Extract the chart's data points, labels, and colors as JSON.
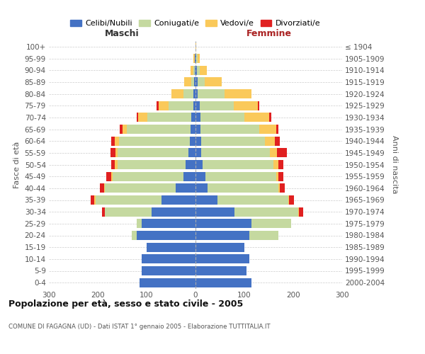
{
  "age_groups": [
    "0-4",
    "5-9",
    "10-14",
    "15-19",
    "20-24",
    "25-29",
    "30-34",
    "35-39",
    "40-44",
    "45-49",
    "50-54",
    "55-59",
    "60-64",
    "65-69",
    "70-74",
    "75-79",
    "80-84",
    "85-89",
    "90-94",
    "95-99",
    "100+"
  ],
  "birth_years": [
    "2000-2004",
    "1995-1999",
    "1990-1994",
    "1985-1989",
    "1980-1984",
    "1975-1979",
    "1970-1974",
    "1965-1969",
    "1960-1964",
    "1955-1959",
    "1950-1954",
    "1945-1949",
    "1940-1944",
    "1935-1939",
    "1930-1934",
    "1925-1929",
    "1920-1924",
    "1915-1919",
    "1910-1914",
    "1905-1909",
    "≤ 1904"
  ],
  "maschi_celibe": [
    115,
    110,
    110,
    100,
    120,
    110,
    90,
    70,
    40,
    25,
    20,
    14,
    12,
    10,
    8,
    5,
    4,
    3,
    2,
    1,
    0
  ],
  "maschi_coniugato": [
    0,
    0,
    0,
    0,
    10,
    10,
    95,
    135,
    145,
    145,
    140,
    145,
    145,
    130,
    90,
    50,
    20,
    5,
    3,
    1,
    0
  ],
  "maschi_vedovo": [
    0,
    0,
    0,
    0,
    1,
    0,
    1,
    2,
    2,
    3,
    5,
    5,
    8,
    10,
    20,
    20,
    25,
    15,
    5,
    2,
    0
  ],
  "maschi_divorziato": [
    0,
    0,
    0,
    0,
    0,
    0,
    5,
    8,
    8,
    10,
    8,
    10,
    8,
    5,
    2,
    5,
    0,
    0,
    0,
    0,
    0
  ],
  "femmine_celibe": [
    115,
    105,
    110,
    100,
    110,
    115,
    80,
    45,
    25,
    20,
    15,
    12,
    12,
    10,
    10,
    8,
    5,
    4,
    3,
    2,
    0
  ],
  "femmine_coniugata": [
    0,
    0,
    0,
    0,
    60,
    80,
    130,
    145,
    145,
    145,
    145,
    140,
    130,
    120,
    90,
    70,
    55,
    15,
    5,
    2,
    0
  ],
  "femmine_vedova": [
    0,
    0,
    0,
    0,
    0,
    0,
    1,
    2,
    3,
    5,
    10,
    15,
    20,
    35,
    50,
    50,
    55,
    35,
    15,
    5,
    1
  ],
  "femmine_divorziata": [
    0,
    0,
    0,
    0,
    0,
    0,
    10,
    10,
    10,
    10,
    10,
    20,
    10,
    5,
    5,
    3,
    0,
    0,
    0,
    0,
    0
  ],
  "colors": {
    "celibe": "#4472c4",
    "coniugato": "#c5d9a0",
    "vedovo": "#fac95a",
    "divorziato": "#e02020"
  },
  "title": "Popolazione per età, sesso e stato civile - 2005",
  "subtitle": "COMUNE DI FAGAGNA (UD) - Dati ISTAT 1° gennaio 2005 - Elaborazione TUTTITALIA.IT",
  "ylabel_left": "Fasce di età",
  "ylabel_right": "Anni di nascita",
  "xlabel_left": "Maschi",
  "xlabel_right": "Femmine",
  "xlim": 300
}
